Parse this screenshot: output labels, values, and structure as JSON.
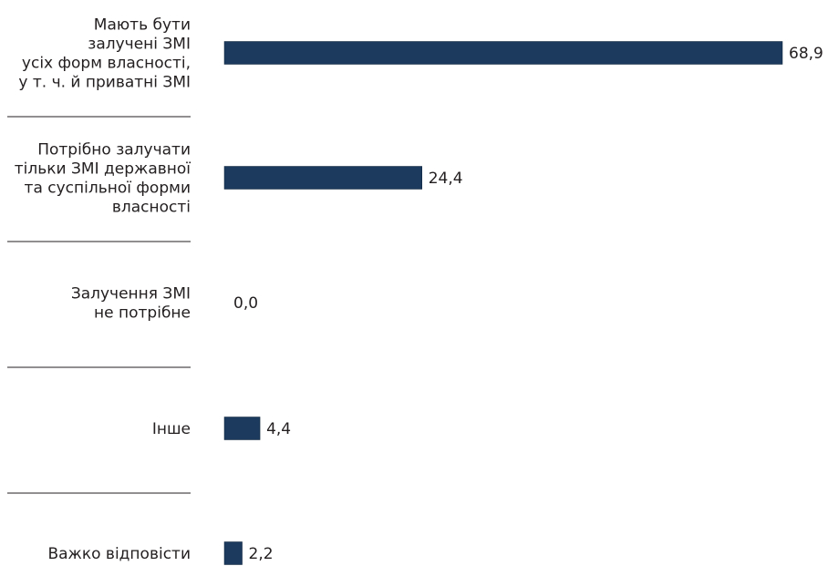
{
  "chart_data": {
    "type": "bar",
    "orientation": "horizontal",
    "categories": [
      [
        "Мають бути",
        "залучені ЗМІ",
        "усіх форм власності,",
        "у т. ч. й приватні ЗМІ"
      ],
      [
        "Потрібно залучати",
        "тільки ЗМІ державної",
        "та суспільної форми",
        "власності"
      ],
      [
        "Залучення ЗМІ",
        "не потрібне"
      ],
      [
        "Інше"
      ],
      [
        "Важко відповісти"
      ]
    ],
    "values": [
      68.9,
      24.4,
      0.0,
      4.4,
      2.2
    ],
    "value_labels": [
      "68,9",
      "24,4",
      "0,0",
      "4,4",
      "2,2"
    ],
    "xlim": [
      0,
      68.9
    ],
    "grid": false,
    "legend": "none",
    "bar_color": "#1b3a5e",
    "separator_color": "#231f20",
    "title": "",
    "xlabel": "",
    "ylabel": ""
  }
}
